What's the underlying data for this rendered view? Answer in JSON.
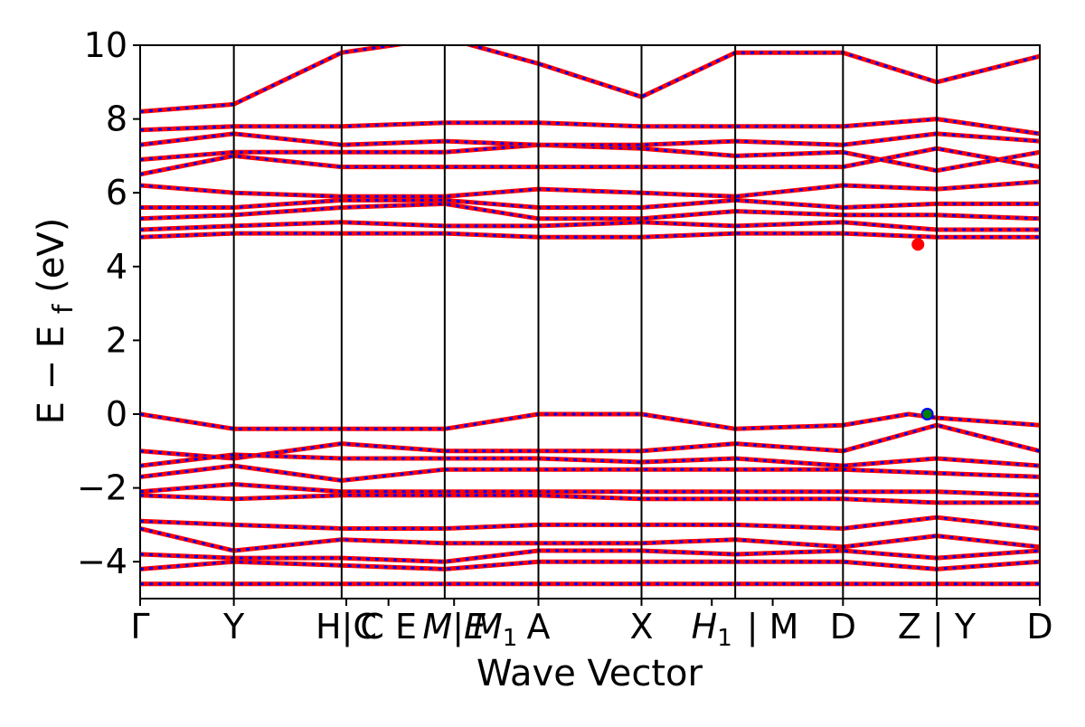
{
  "chart_data": {
    "type": "line",
    "xlabel": "Wave Vector",
    "ylabel": "E − E",
    "ylabel_sub": "f",
    "ylabel_unit": "(eV)",
    "ylim": [
      -5,
      10
    ],
    "yticks": [
      -4,
      -2,
      0,
      2,
      4,
      6,
      8,
      10
    ],
    "ytick_labels": [
      "−4",
      "−2",
      "0",
      "2",
      "4",
      "6",
      "8",
      "10"
    ],
    "xlim": [
      0,
      9.6
    ],
    "high_symmetry_points": [
      {
        "x": 0.0,
        "label": "Γ"
      },
      {
        "x": 1.0,
        "label": "Y"
      },
      {
        "x": 2.15,
        "label": "H|C"
      },
      {
        "x": 2.2,
        "label": "C"
      },
      {
        "x": 2.6,
        "label": "E"
      },
      {
        "x": 3.25,
        "label": "M"
      },
      {
        "x": 3.3,
        "label": "E"
      },
      {
        "x": 3.35,
        "label": "M"
      },
      {
        "x": 4.25,
        "label": "A"
      },
      {
        "x": 5.35,
        "label": "X"
      },
      {
        "x": 6.35,
        "label": "H | M"
      },
      {
        "x": 7.5,
        "label": "D"
      },
      {
        "x": 8.5,
        "label": "Z | Y"
      },
      {
        "x": 9.6,
        "label": "D"
      }
    ],
    "vertical_lines": [
      1.0,
      2.15,
      3.25,
      4.25,
      5.35,
      6.35,
      7.5,
      8.5
    ],
    "series": [
      {
        "color": "#ff0000",
        "values": [
          [
            0,
            0.0
          ],
          [
            1,
            -0.4
          ],
          [
            2.15,
            -0.4
          ],
          [
            3.25,
            -0.4
          ],
          [
            4.25,
            0.0
          ],
          [
            5.35,
            0.0
          ],
          [
            6.35,
            -0.4
          ],
          [
            7.5,
            -0.3
          ],
          [
            8.2,
            0.0
          ],
          [
            8.5,
            -0.1
          ],
          [
            9.6,
            -0.3
          ]
        ]
      },
      {
        "color": "#ff0000",
        "values": [
          [
            0,
            -1.0
          ],
          [
            1,
            -1.2
          ],
          [
            2.15,
            -0.8
          ],
          [
            3.25,
            -1.0
          ],
          [
            4.25,
            -1.0
          ],
          [
            5.35,
            -1.0
          ],
          [
            6.35,
            -0.8
          ],
          [
            7.5,
            -1.0
          ],
          [
            8.5,
            -0.3
          ],
          [
            9.6,
            -1.0
          ]
        ]
      },
      {
        "color": "#ff0000",
        "values": [
          [
            0,
            -1.4
          ],
          [
            1,
            -1.1
          ],
          [
            2.15,
            -1.2
          ],
          [
            3.25,
            -1.2
          ],
          [
            4.25,
            -1.2
          ],
          [
            5.35,
            -1.3
          ],
          [
            6.35,
            -1.2
          ],
          [
            7.5,
            -1.4
          ],
          [
            8.5,
            -1.2
          ],
          [
            9.6,
            -1.4
          ]
        ]
      },
      {
        "color": "#ff0000",
        "values": [
          [
            0,
            -1.7
          ],
          [
            1,
            -1.4
          ],
          [
            2.15,
            -1.8
          ],
          [
            3.25,
            -1.5
          ],
          [
            4.25,
            -1.5
          ],
          [
            5.35,
            -1.5
          ],
          [
            6.35,
            -1.5
          ],
          [
            7.5,
            -1.5
          ],
          [
            8.5,
            -1.6
          ],
          [
            9.6,
            -1.7
          ]
        ]
      },
      {
        "color": "#ff0000",
        "values": [
          [
            0,
            -2.1
          ],
          [
            1,
            -1.9
          ],
          [
            2.15,
            -2.1
          ],
          [
            3.25,
            -2.1
          ],
          [
            4.25,
            -2.1
          ],
          [
            5.35,
            -2.1
          ],
          [
            6.35,
            -2.1
          ],
          [
            7.5,
            -2.1
          ],
          [
            8.5,
            -2.1
          ],
          [
            9.6,
            -2.2
          ]
        ]
      },
      {
        "color": "#ff0000",
        "values": [
          [
            0,
            -2.2
          ],
          [
            1,
            -2.3
          ],
          [
            2.15,
            -2.2
          ],
          [
            3.25,
            -2.2
          ],
          [
            4.25,
            -2.2
          ],
          [
            5.35,
            -2.3
          ],
          [
            6.35,
            -2.3
          ],
          [
            7.5,
            -2.3
          ],
          [
            8.5,
            -2.4
          ],
          [
            9.6,
            -2.4
          ]
        ]
      },
      {
        "color": "#ff0000",
        "values": [
          [
            0,
            -2.9
          ],
          [
            1,
            -3.0
          ],
          [
            2.15,
            -3.1
          ],
          [
            3.25,
            -3.1
          ],
          [
            4.25,
            -3.0
          ],
          [
            5.35,
            -3.0
          ],
          [
            6.35,
            -3.0
          ],
          [
            7.5,
            -3.1
          ],
          [
            8.5,
            -2.8
          ],
          [
            9.6,
            -3.1
          ]
        ]
      },
      {
        "color": "#ff0000",
        "values": [
          [
            0,
            -3.1
          ],
          [
            1,
            -3.7
          ],
          [
            2.15,
            -3.4
          ],
          [
            3.25,
            -3.5
          ],
          [
            4.25,
            -3.5
          ],
          [
            5.35,
            -3.5
          ],
          [
            6.35,
            -3.4
          ],
          [
            7.5,
            -3.6
          ],
          [
            8.5,
            -3.3
          ],
          [
            9.6,
            -3.6
          ]
        ]
      },
      {
        "color": "#ff0000",
        "values": [
          [
            0,
            -3.8
          ],
          [
            1,
            -3.9
          ],
          [
            2.15,
            -3.9
          ],
          [
            3.25,
            -4.0
          ],
          [
            4.25,
            -3.7
          ],
          [
            5.35,
            -3.7
          ],
          [
            6.35,
            -3.8
          ],
          [
            7.5,
            -3.7
          ],
          [
            8.5,
            -3.9
          ],
          [
            9.6,
            -3.7
          ]
        ]
      },
      {
        "color": "#ff0000",
        "values": [
          [
            0,
            -4.2
          ],
          [
            1,
            -4.0
          ],
          [
            2.15,
            -4.1
          ],
          [
            3.25,
            -4.2
          ],
          [
            4.25,
            -4.0
          ],
          [
            5.35,
            -4.0
          ],
          [
            6.35,
            -4.0
          ],
          [
            7.5,
            -4.0
          ],
          [
            8.5,
            -4.2
          ],
          [
            9.6,
            -4.0
          ]
        ]
      },
      {
        "color": "#ff0000",
        "values": [
          [
            0,
            -4.6
          ],
          [
            1,
            -4.6
          ],
          [
            2.15,
            -4.6
          ],
          [
            3.25,
            -4.6
          ],
          [
            4.25,
            -4.6
          ],
          [
            5.35,
            -4.6
          ],
          [
            6.35,
            -4.6
          ],
          [
            7.5,
            -4.6
          ],
          [
            8.5,
            -4.6
          ],
          [
            9.6,
            -4.6
          ]
        ]
      },
      {
        "color": "#ff0000",
        "values": [
          [
            0,
            4.8
          ],
          [
            1,
            4.9
          ],
          [
            2.15,
            4.9
          ],
          [
            3.25,
            4.9
          ],
          [
            4.25,
            4.8
          ],
          [
            5.35,
            4.8
          ],
          [
            6.35,
            4.9
          ],
          [
            7.5,
            4.9
          ],
          [
            8.5,
            4.8
          ],
          [
            9.6,
            4.8
          ]
        ]
      },
      {
        "color": "#ff0000",
        "values": [
          [
            0,
            5.0
          ],
          [
            1,
            5.1
          ],
          [
            2.15,
            5.2
          ],
          [
            3.25,
            5.1
          ],
          [
            4.25,
            5.1
          ],
          [
            5.35,
            5.2
          ],
          [
            6.35,
            5.1
          ],
          [
            7.5,
            5.2
          ],
          [
            8.5,
            5.0
          ],
          [
            9.6,
            5.0
          ]
        ]
      },
      {
        "color": "#ff0000",
        "values": [
          [
            0,
            5.3
          ],
          [
            1,
            5.4
          ],
          [
            2.15,
            5.6
          ],
          [
            3.25,
            5.7
          ],
          [
            4.25,
            5.3
          ],
          [
            5.35,
            5.3
          ],
          [
            6.35,
            5.5
          ],
          [
            7.5,
            5.4
          ],
          [
            8.5,
            5.4
          ],
          [
            9.6,
            5.3
          ]
        ]
      },
      {
        "color": "#ff0000",
        "values": [
          [
            0,
            5.6
          ],
          [
            1,
            5.6
          ],
          [
            2.15,
            5.8
          ],
          [
            3.25,
            5.8
          ],
          [
            4.25,
            5.6
          ],
          [
            5.35,
            5.6
          ],
          [
            6.35,
            5.8
          ],
          [
            7.5,
            5.6
          ],
          [
            8.5,
            5.7
          ],
          [
            9.6,
            5.7
          ]
        ]
      },
      {
        "color": "#ff0000",
        "values": [
          [
            0,
            6.2
          ],
          [
            1,
            6.0
          ],
          [
            2.15,
            5.9
          ],
          [
            3.25,
            5.9
          ],
          [
            4.25,
            6.1
          ],
          [
            5.35,
            6.0
          ],
          [
            6.35,
            5.9
          ],
          [
            7.5,
            6.2
          ],
          [
            8.5,
            6.1
          ],
          [
            9.6,
            6.3
          ]
        ]
      },
      {
        "color": "#ff0000",
        "values": [
          [
            0,
            6.5
          ],
          [
            1,
            7.0
          ],
          [
            2.15,
            6.7
          ],
          [
            3.25,
            6.7
          ],
          [
            4.25,
            6.7
          ],
          [
            5.35,
            6.7
          ],
          [
            6.35,
            6.7
          ],
          [
            7.5,
            6.7
          ],
          [
            8.5,
            7.2
          ],
          [
            9.6,
            6.7
          ]
        ]
      },
      {
        "color": "#ff0000",
        "values": [
          [
            0,
            6.9
          ],
          [
            1,
            7.1
          ],
          [
            2.15,
            7.1
          ],
          [
            3.25,
            7.1
          ],
          [
            4.25,
            7.3
          ],
          [
            5.35,
            7.2
          ],
          [
            6.35,
            7.0
          ],
          [
            7.5,
            7.1
          ],
          [
            8.5,
            6.6
          ],
          [
            9.6,
            7.1
          ]
        ]
      },
      {
        "color": "#ff0000",
        "values": [
          [
            0,
            7.3
          ],
          [
            1,
            7.6
          ],
          [
            2.15,
            7.3
          ],
          [
            3.25,
            7.4
          ],
          [
            4.25,
            7.3
          ],
          [
            5.35,
            7.3
          ],
          [
            6.35,
            7.4
          ],
          [
            7.5,
            7.3
          ],
          [
            8.5,
            7.6
          ],
          [
            9.6,
            7.4
          ]
        ]
      },
      {
        "color": "#ff0000",
        "values": [
          [
            0,
            7.7
          ],
          [
            1,
            7.8
          ],
          [
            2.15,
            7.8
          ],
          [
            3.25,
            7.9
          ],
          [
            4.25,
            7.9
          ],
          [
            5.35,
            7.8
          ],
          [
            6.35,
            7.8
          ],
          [
            7.5,
            7.8
          ],
          [
            8.5,
            8.0
          ],
          [
            9.6,
            7.6
          ]
        ]
      },
      {
        "color": "#ff0000",
        "values": [
          [
            0,
            8.2
          ],
          [
            1,
            8.4
          ],
          [
            2.15,
            9.8
          ],
          [
            3.25,
            10.2
          ],
          [
            4.25,
            9.5
          ],
          [
            5.35,
            8.6
          ],
          [
            6.35,
            9.8
          ],
          [
            7.5,
            9.8
          ],
          [
            8.5,
            9.0
          ],
          [
            9.6,
            9.7
          ]
        ]
      }
    ],
    "markers": [
      {
        "x": 8.3,
        "y": 4.6,
        "color": "#ff0000"
      },
      {
        "x": 8.4,
        "y": 0.0,
        "color": "#008000"
      }
    ]
  }
}
